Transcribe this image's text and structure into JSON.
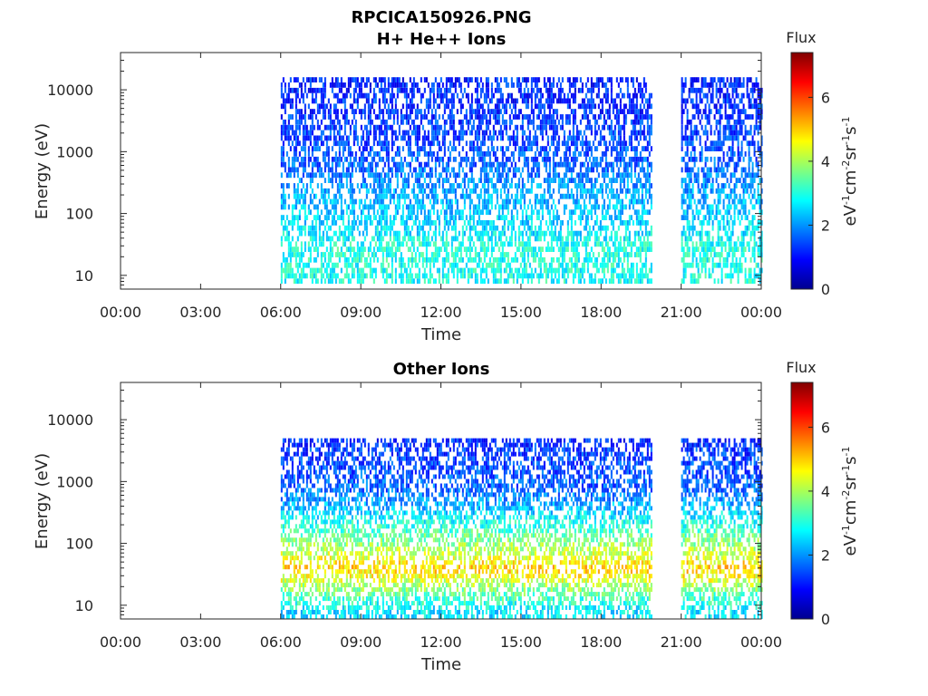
{
  "figure": {
    "title": "RPCICA150926.PNG"
  },
  "chart_data": [
    {
      "type": "heatmap",
      "title": "H+ He++ Ions",
      "xlabel": "Time",
      "ylabel": "Energy (eV)",
      "x_tick_labels": [
        "00:00",
        "03:00",
        "06:00",
        "09:00",
        "12:00",
        "15:00",
        "18:00",
        "21:00",
        "00:00"
      ],
      "x_range_hours": [
        0,
        24
      ],
      "y_scale": "log",
      "y_tick_values": [
        10,
        100,
        1000,
        10000
      ],
      "y_tick_labels": [
        "10",
        "100",
        "1000",
        "10000"
      ],
      "y_range": [
        6,
        40000
      ],
      "data_intervals_hours": [
        [
          6.0,
          19.9
        ],
        [
          21.0,
          24.0
        ]
      ],
      "data_gap_hours": [
        19.9,
        21.0
      ],
      "flux_profile": [
        {
          "energy": 10,
          "flux": 2.9
        },
        {
          "energy": 30,
          "flux": 3.0
        },
        {
          "energy": 50,
          "flux": 2.6
        },
        {
          "energy": 100,
          "flux": 2.4
        },
        {
          "energy": 200,
          "flux": 2.2
        },
        {
          "energy": 500,
          "flux": 1.7
        },
        {
          "energy": 1000,
          "flux": 1.5
        },
        {
          "energy": 3000,
          "flux": 1.3
        },
        {
          "energy": 10000,
          "flux": 1.2
        },
        {
          "energy": 16000,
          "flux": 1.1
        }
      ],
      "colorbar": {
        "title": "Flux",
        "label": "eV-1cm-2sr-1s-1",
        "range": [
          0,
          7.4
        ],
        "ticks": [
          0,
          2,
          4,
          6
        ],
        "tick_labels": [
          "0",
          "2",
          "4",
          "6"
        ],
        "colormap": "jet"
      }
    },
    {
      "type": "heatmap",
      "title": "Other Ions",
      "xlabel": "Time",
      "ylabel": "Energy (eV)",
      "x_tick_labels": [
        "00:00",
        "03:00",
        "06:00",
        "09:00",
        "12:00",
        "15:00",
        "18:00",
        "21:00",
        "00:00"
      ],
      "x_range_hours": [
        0,
        24
      ],
      "y_scale": "log",
      "y_tick_values": [
        10,
        100,
        1000,
        10000
      ],
      "y_tick_labels": [
        "10",
        "100",
        "1000",
        "10000"
      ],
      "y_range": [
        6,
        40000
      ],
      "data_intervals_hours": [
        [
          6.0,
          19.9
        ],
        [
          21.0,
          24.0
        ]
      ],
      "data_gap_hours": [
        19.9,
        21.0
      ],
      "flux_profile": [
        {
          "energy": 8,
          "flux": 2.6
        },
        {
          "energy": 15,
          "flux": 3.4
        },
        {
          "energy": 30,
          "flux": 4.6
        },
        {
          "energy": 40,
          "flux": 5.0
        },
        {
          "energy": 60,
          "flux": 4.4
        },
        {
          "energy": 100,
          "flux": 3.8
        },
        {
          "energy": 200,
          "flux": 3.0
        },
        {
          "energy": 400,
          "flux": 2.2
        },
        {
          "energy": 800,
          "flux": 1.6
        },
        {
          "energy": 5000,
          "flux": 1.2
        }
      ],
      "colorbar": {
        "title": "Flux",
        "label": "eV-1cm-2sr-1s-1",
        "range": [
          0,
          7.4
        ],
        "ticks": [
          0,
          2,
          4,
          6
        ],
        "tick_labels": [
          "0",
          "2",
          "4",
          "6"
        ],
        "colormap": "jet"
      }
    }
  ]
}
